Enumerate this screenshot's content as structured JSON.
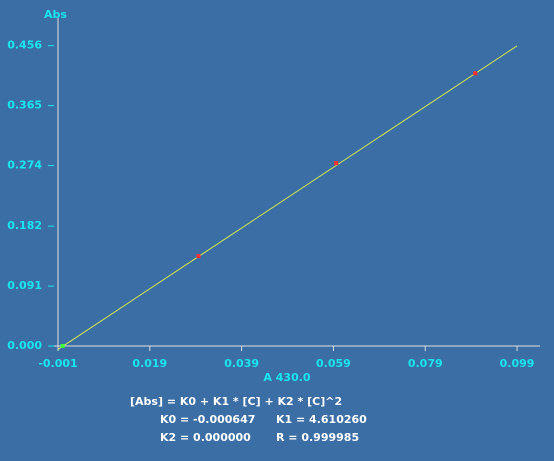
{
  "chart_data": {
    "type": "scatter",
    "y_label": "Abs",
    "x_label": "A 430.0",
    "xlim": [
      -0.001,
      0.104
    ],
    "ylim": [
      0,
      0.498
    ],
    "xticks": [
      -0.001,
      0.019,
      0.039,
      0.059,
      0.079,
      0.099
    ],
    "yticks": [
      {
        "value": 0,
        "label": "0.000"
      },
      0.091,
      0.182,
      0.274,
      0.365,
      0.456
    ],
    "series": [
      {
        "color": "#ff3030",
        "x": [
          0.0296,
          0.0596,
          0.0899
        ],
        "values": [
          0.1365,
          0.2776,
          0.414
        ]
      },
      {
        "color": "#3cff3c",
        "x": [
          0
        ],
        "values": [
          0
        ]
      }
    ],
    "fit_line": {
      "color": "#d8ec4a",
      "x": [
        -0.001,
        0.099
      ],
      "values": [
        -0.00526,
        0.4557
      ]
    },
    "equation": "[Abs] = K0 + K1 * [C] + K2 * [C]^2",
    "coefficients": [
      "K0 = -0.000647",
      "K1 = 4.610260",
      "K2 = 0.000000",
      "R = 0.999985"
    ]
  }
}
